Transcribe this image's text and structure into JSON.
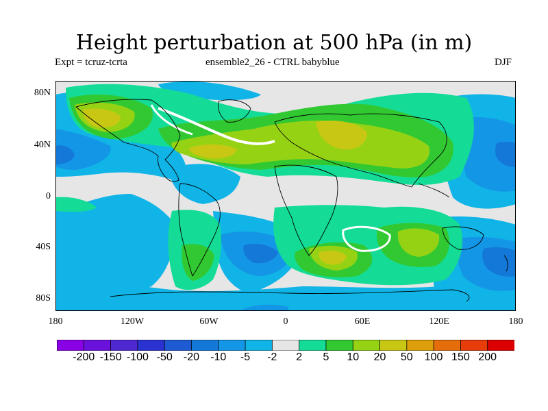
{
  "title": "Height perturbation at 500 hPa (in m)",
  "subtitle_left": "Expt = tcruz-tcrta",
  "subtitle_center": "ensemble2_26 - CTRL babyblue",
  "subtitle_right": "DJF",
  "lat_labels": [
    "80N",
    "40N",
    "0",
    "40S",
    "80S"
  ],
  "lon_labels": [
    "180",
    "120W",
    "60W",
    "0",
    "60E",
    "120E",
    "180"
  ],
  "colorbar": {
    "colors": [
      "#8a00e6",
      "#6a12dc",
      "#5028d2",
      "#2a32d2",
      "#1e5ad2",
      "#1478d8",
      "#1496e6",
      "#10b4e6",
      "#e6e6e6",
      "#14dc96",
      "#32c832",
      "#96d214",
      "#c8c814",
      "#dc9e0a",
      "#e66e0a",
      "#e63c0a",
      "#dc0000"
    ],
    "labels": [
      "-200",
      "-150",
      "-100",
      "-50",
      "-20",
      "-10",
      "-5",
      "-2",
      "2",
      "5",
      "10",
      "20",
      "50",
      "100",
      "150",
      "200"
    ]
  }
}
